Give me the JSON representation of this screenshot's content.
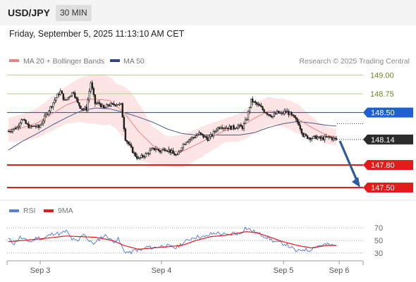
{
  "header": {
    "symbol": "USD/JPY",
    "interval": "30 MIN",
    "datetime": "Friday, September 5, 2025 11:13:10 AM CET"
  },
  "legend": {
    "ma20_bb": "MA 20 + Bollinger Bands",
    "ma50": "MA 50",
    "credit": "Research © 2025 Trading Central"
  },
  "rsi_legend": {
    "rsi": "RSI",
    "ma": "9MA"
  },
  "colors": {
    "candle": "#1e1e1e",
    "ma20": "#f08080",
    "bollinger_fill": "#fde0e0",
    "ma50": "#4a5a8a",
    "level_green": "#b5d28a",
    "level_blue": "#1f5fd0",
    "level_red": "#e31b1b",
    "arrow": "#2d5aa0",
    "rsi": "#5b7fd6",
    "rsi_ma": "#e31b1b"
  },
  "chart_data": {
    "type": "candlestick",
    "ylim": [
      147.34,
      149.06
    ],
    "x_labels": [
      "Sep 3",
      "Sep 4",
      "Sep 5",
      "Sep 6"
    ],
    "levels": [
      {
        "label": "149.00",
        "value": 149.0,
        "style": "green"
      },
      {
        "label": "148.75",
        "value": 148.75,
        "style": "green"
      },
      {
        "label": "148.50",
        "value": 148.5,
        "style": "blue"
      },
      {
        "label": "148.14",
        "value": 148.14,
        "style": "current"
      },
      {
        "label": "147.80",
        "value": 147.8,
        "style": "red"
      },
      {
        "label": "147.50",
        "value": 147.5,
        "style": "red"
      }
    ],
    "forecast": {
      "from": 148.14,
      "to": 147.5
    },
    "price_anchors": [
      [
        0,
        148.25
      ],
      [
        3,
        148.28
      ],
      [
        6,
        148.3
      ],
      [
        9,
        148.42
      ],
      [
        12,
        148.35
      ],
      [
        15,
        148.3
      ],
      [
        18,
        148.32
      ],
      [
        21,
        148.3
      ],
      [
        24,
        148.4
      ],
      [
        27,
        148.5
      ],
      [
        30,
        148.6
      ],
      [
        33,
        148.7
      ],
      [
        36,
        148.78
      ],
      [
        39,
        148.65
      ],
      [
        42,
        148.72
      ],
      [
        45,
        148.78
      ],
      [
        48,
        148.62
      ],
      [
        51,
        148.55
      ],
      [
        54,
        148.55
      ],
      [
        57,
        148.9
      ],
      [
        60,
        148.62
      ],
      [
        63,
        148.62
      ],
      [
        66,
        148.55
      ],
      [
        69,
        148.6
      ],
      [
        72,
        148.6
      ],
      [
        75,
        148.62
      ],
      [
        78,
        148.6
      ],
      [
        81,
        148.15
      ],
      [
        84,
        148.05
      ],
      [
        87,
        147.95
      ],
      [
        90,
        147.88
      ],
      [
        93,
        147.92
      ],
      [
        96,
        147.95
      ],
      [
        99,
        148.0
      ],
      [
        102,
        148.02
      ],
      [
        105,
        147.98
      ],
      [
        108,
        148.02
      ],
      [
        111,
        148.0
      ],
      [
        114,
        147.95
      ],
      [
        117,
        147.92
      ],
      [
        120,
        148.05
      ],
      [
        123,
        148.12
      ],
      [
        126,
        148.15
      ],
      [
        129,
        148.18
      ],
      [
        132,
        148.22
      ],
      [
        135,
        148.18
      ],
      [
        138,
        148.15
      ],
      [
        141,
        148.2
      ],
      [
        144,
        148.28
      ],
      [
        147,
        148.32
      ],
      [
        150,
        148.3
      ],
      [
        153,
        148.3
      ],
      [
        156,
        148.3
      ],
      [
        159,
        148.32
      ],
      [
        162,
        148.3
      ],
      [
        165,
        148.42
      ],
      [
        168,
        148.66
      ],
      [
        171,
        148.62
      ],
      [
        174,
        148.58
      ],
      [
        177,
        148.52
      ],
      [
        180,
        148.48
      ],
      [
        183,
        148.45
      ],
      [
        186,
        148.5
      ],
      [
        189,
        148.48
      ],
      [
        192,
        148.52
      ],
      [
        195,
        148.48
      ],
      [
        198,
        148.42
      ],
      [
        201,
        148.35
      ],
      [
        204,
        148.2
      ],
      [
        207,
        148.17
      ],
      [
        210,
        148.16
      ],
      [
        213,
        148.17
      ],
      [
        216,
        148.15
      ],
      [
        219,
        148.16
      ],
      [
        222,
        148.17
      ],
      [
        225,
        148.15
      ],
      [
        227,
        148.14
      ]
    ],
    "ma20_anchors": [
      [
        0,
        148.27
      ],
      [
        10,
        148.3
      ],
      [
        20,
        148.36
      ],
      [
        30,
        148.48
      ],
      [
        40,
        148.6
      ],
      [
        50,
        148.67
      ],
      [
        60,
        148.68
      ],
      [
        70,
        148.66
      ],
      [
        80,
        148.5
      ],
      [
        90,
        148.25
      ],
      [
        100,
        148.06
      ],
      [
        110,
        147.98
      ],
      [
        120,
        147.98
      ],
      [
        130,
        148.07
      ],
      [
        140,
        148.17
      ],
      [
        150,
        148.26
      ],
      [
        160,
        148.3
      ],
      [
        170,
        148.42
      ],
      [
        180,
        148.52
      ],
      [
        190,
        148.5
      ],
      [
        200,
        148.42
      ],
      [
        210,
        148.3
      ],
      [
        220,
        148.2
      ],
      [
        227,
        148.17
      ]
    ],
    "ma50_anchors": [
      [
        0,
        148.0
      ],
      [
        10,
        148.12
      ],
      [
        20,
        148.22
      ],
      [
        30,
        148.33
      ],
      [
        40,
        148.43
      ],
      [
        50,
        148.52
      ],
      [
        60,
        148.56
      ],
      [
        70,
        148.55
      ],
      [
        80,
        148.5
      ],
      [
        90,
        148.44
      ],
      [
        100,
        148.37
      ],
      [
        110,
        148.28
      ],
      [
        120,
        148.22
      ],
      [
        130,
        148.2
      ],
      [
        140,
        148.2
      ],
      [
        150,
        148.2
      ],
      [
        160,
        148.2
      ],
      [
        170,
        148.23
      ],
      [
        180,
        148.3
      ],
      [
        190,
        148.35
      ],
      [
        200,
        148.38
      ],
      [
        210,
        148.36
      ],
      [
        220,
        148.33
      ],
      [
        227,
        148.32
      ]
    ],
    "band_width_anchors": [
      [
        0,
        0.16
      ],
      [
        20,
        0.2
      ],
      [
        40,
        0.25
      ],
      [
        55,
        0.32
      ],
      [
        65,
        0.34
      ],
      [
        75,
        0.3
      ],
      [
        85,
        0.4
      ],
      [
        92,
        0.36
      ],
      [
        100,
        0.25
      ],
      [
        110,
        0.2
      ],
      [
        120,
        0.22
      ],
      [
        135,
        0.2
      ],
      [
        150,
        0.16
      ],
      [
        165,
        0.2
      ],
      [
        175,
        0.2
      ],
      [
        185,
        0.18
      ],
      [
        200,
        0.2
      ],
      [
        215,
        0.12
      ],
      [
        227,
        0.11
      ]
    ],
    "rsi": {
      "ylim": [
        22,
        78
      ],
      "ticks": [
        70,
        50,
        30
      ],
      "anchors": [
        [
          0,
          52
        ],
        [
          4,
          45
        ],
        [
          8,
          55
        ],
        [
          12,
          50
        ],
        [
          16,
          48
        ],
        [
          20,
          55
        ],
        [
          24,
          52
        ],
        [
          28,
          58
        ],
        [
          32,
          62
        ],
        [
          36,
          60
        ],
        [
          40,
          65
        ],
        [
          44,
          52
        ],
        [
          48,
          48
        ],
        [
          52,
          62
        ],
        [
          56,
          48
        ],
        [
          60,
          45
        ],
        [
          64,
          55
        ],
        [
          68,
          58
        ],
        [
          72,
          48
        ],
        [
          76,
          52
        ],
        [
          80,
          33
        ],
        [
          84,
          30
        ],
        [
          88,
          35
        ],
        [
          92,
          34
        ],
        [
          96,
          40
        ],
        [
          100,
          38
        ],
        [
          104,
          40
        ],
        [
          108,
          42
        ],
        [
          112,
          40
        ],
        [
          116,
          38
        ],
        [
          120,
          45
        ],
        [
          124,
          50
        ],
        [
          128,
          55
        ],
        [
          132,
          56
        ],
        [
          136,
          55
        ],
        [
          140,
          60
        ],
        [
          144,
          62
        ],
        [
          148,
          60
        ],
        [
          152,
          58
        ],
        [
          156,
          62
        ],
        [
          160,
          60
        ],
        [
          164,
          70
        ],
        [
          168,
          66
        ],
        [
          172,
          62
        ],
        [
          176,
          58
        ],
        [
          180,
          54
        ],
        [
          184,
          48
        ],
        [
          188,
          46
        ],
        [
          192,
          44
        ],
        [
          196,
          38
        ],
        [
          200,
          32
        ],
        [
          204,
          36
        ],
        [
          208,
          34
        ],
        [
          212,
          40
        ],
        [
          216,
          42
        ],
        [
          220,
          44
        ],
        [
          224,
          42
        ],
        [
          227,
          41
        ]
      ],
      "ma_anchors": [
        [
          0,
          48
        ],
        [
          20,
          52
        ],
        [
          40,
          57
        ],
        [
          60,
          55
        ],
        [
          72,
          50
        ],
        [
          80,
          42
        ],
        [
          90,
          36
        ],
        [
          100,
          38
        ],
        [
          110,
          40
        ],
        [
          120,
          42
        ],
        [
          130,
          50
        ],
        [
          140,
          56
        ],
        [
          150,
          58
        ],
        [
          160,
          62
        ],
        [
          165,
          64
        ],
        [
          172,
          62
        ],
        [
          180,
          56
        ],
        [
          190,
          48
        ],
        [
          200,
          42
        ],
        [
          210,
          38
        ],
        [
          220,
          42
        ],
        [
          227,
          42
        ]
      ]
    }
  }
}
